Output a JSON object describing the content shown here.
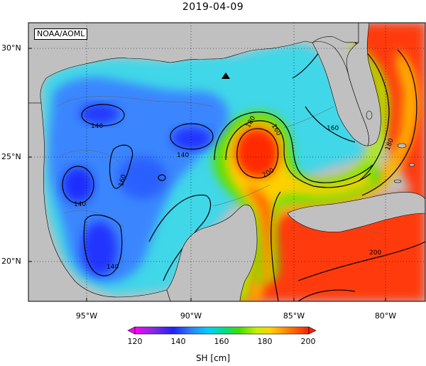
{
  "title": "2019-04-09",
  "credit": "NOAA/AOML",
  "axes": {
    "lat_labels": [
      "30°N",
      "25°N",
      "20°N"
    ],
    "lon_labels": [
      "95°W",
      "90°W",
      "85°W",
      "80°W"
    ]
  },
  "contour_labels": [
    "140",
    "140",
    "140",
    "140",
    "160",
    "160",
    "160",
    "180",
    "180",
    "200",
    "200"
  ],
  "colorbar": {
    "ticks": [
      "120",
      "140",
      "160",
      "180",
      "200"
    ],
    "label": "SH [cm]",
    "range": [
      120,
      200
    ],
    "colors": [
      "#ff00ff",
      "#8a2be2",
      "#2020ff",
      "#2a7fff",
      "#00d0ff",
      "#00e080",
      "#40e000",
      "#c8f000",
      "#ffd000",
      "#ff8000",
      "#ff2000"
    ]
  },
  "colors": {
    "land": "#c0c0c0",
    "low_sh": "#2050ff",
    "high_sh": "#ff2a00"
  },
  "marker": "triangle"
}
